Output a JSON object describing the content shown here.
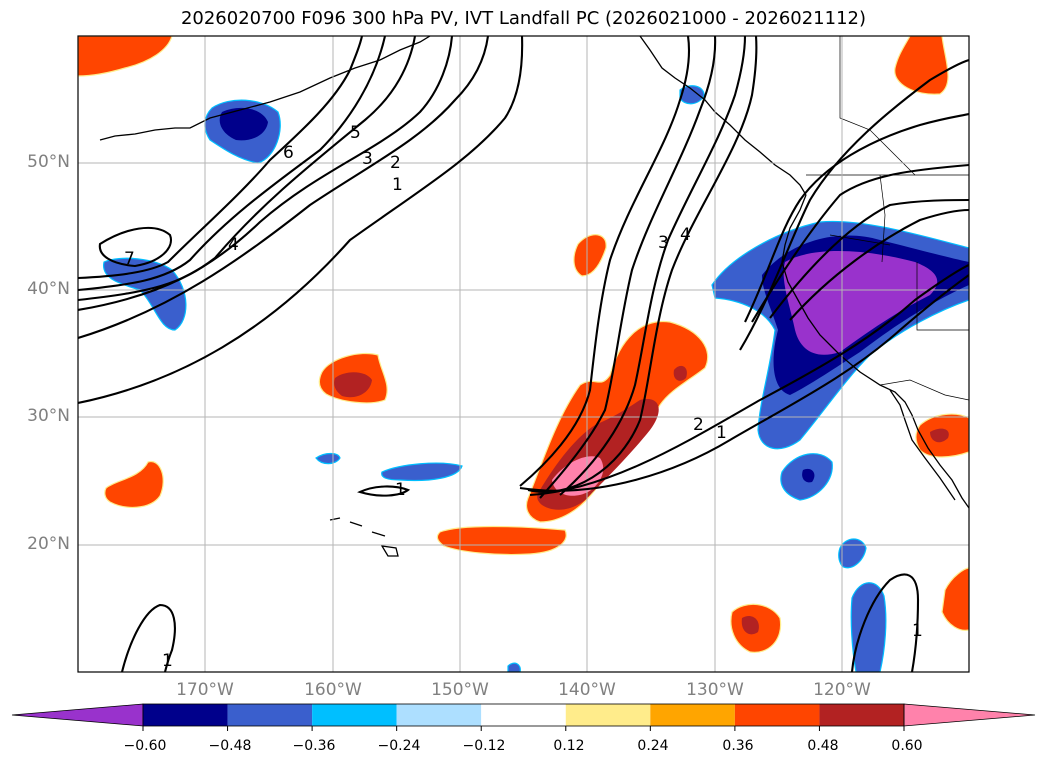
{
  "title": "2026020700 F096 300 hPa PV, IVT Landfall PC (2026021000 - 2026021112)",
  "lat_labels": [
    "50°N",
    "40°N",
    "30°N",
    "20°N"
  ],
  "lon_labels": [
    "170°W",
    "160°W",
    "150°W",
    "140°W",
    "130°W",
    "120°W"
  ],
  "colorbar": {
    "tick_labels": [
      "−0.60",
      "−0.48",
      "−0.36",
      "−0.24",
      "−0.12",
      "0.12",
      "0.24",
      "0.36",
      "0.48",
      "0.60"
    ],
    "colors": [
      "#9932CC",
      "#00008B",
      "#3A5FCD",
      "#00BFFF",
      "#ADDFFF",
      "#FFFFFF",
      "#FFEC8B",
      "#FFA500",
      "#FF4500",
      "#B22222",
      "#FF82AB"
    ]
  },
  "contour_labels": {
    "north_1": "1",
    "north_2": "2",
    "north_3": "3",
    "north_5": "5",
    "north_6": "6",
    "north_4": "4",
    "north_7": "7",
    "east_3": "3",
    "east_4": "4",
    "east_2": "2",
    "east_1": "1",
    "mid_1": "1",
    "sw_1": "1",
    "se_1": "1"
  }
}
